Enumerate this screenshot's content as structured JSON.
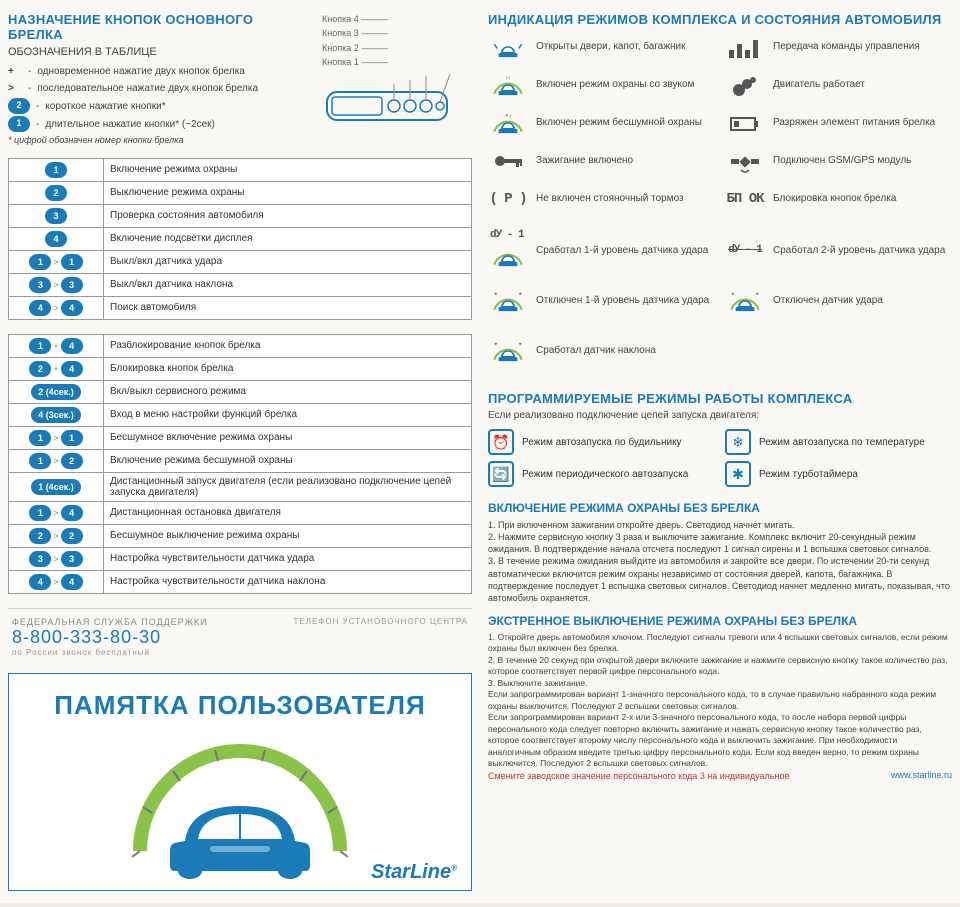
{
  "left": {
    "title": "НАЗНАЧЕНИЕ КНОПОК ОСНОВНОГО БРЕЛКА",
    "subtitle": "ОБОЗНАЧЕНИЯ В ТАБЛИЦЕ",
    "legend": [
      {
        "sym": "+",
        "text": "одновременное нажатие двух кнопок брелка"
      },
      {
        "sym": ">",
        "text": "последовательное нажатие двух кнопок брелка"
      },
      {
        "sym": "2",
        "pill": true,
        "text": "короткое нажатие кнопки*"
      },
      {
        "sym": "1",
        "pill": true,
        "text": "длительное нажатие кнопки* (~2сек)"
      }
    ],
    "legend_note": "* цифрой обозначен номер кнопки брелка",
    "fob_labels": [
      "Кнопка 4",
      "Кнопка 3",
      "Кнопка 2",
      "Кнопка 1"
    ],
    "table1": [
      {
        "buttons": [
          {
            "n": "1"
          }
        ],
        "desc": "Включение режима охраны"
      },
      {
        "buttons": [
          {
            "n": "2"
          }
        ],
        "desc": "Выключение режима охраны"
      },
      {
        "buttons": [
          {
            "n": "3"
          }
        ],
        "desc": "Проверка состояния автомобиля"
      },
      {
        "buttons": [
          {
            "n": "4"
          }
        ],
        "desc": "Включение подсветки дисплея"
      },
      {
        "buttons": [
          {
            "n": "1"
          },
          {
            "sep": ">"
          },
          {
            "n": "1"
          }
        ],
        "desc": "Выкл/вкл датчика удара"
      },
      {
        "buttons": [
          {
            "n": "3"
          },
          {
            "sep": ">"
          },
          {
            "n": "3"
          }
        ],
        "desc": "Выкл/вкл датчика наклона"
      },
      {
        "buttons": [
          {
            "n": "4"
          },
          {
            "sep": ">"
          },
          {
            "n": "4"
          }
        ],
        "desc": "Поиск автомобиля"
      }
    ],
    "table2": [
      {
        "buttons": [
          {
            "n": "1"
          },
          {
            "sep": "+"
          },
          {
            "n": "4"
          }
        ],
        "desc": "Разблокирование кнопок брелка"
      },
      {
        "buttons": [
          {
            "n": "2"
          },
          {
            "sep": "+"
          },
          {
            "n": "4"
          }
        ],
        "desc": "Блокировка кнопок брелка"
      },
      {
        "buttons": [
          {
            "n": "2 (4сек.)",
            "wide": true
          }
        ],
        "desc": "Вкл/выкл сервисного режима"
      },
      {
        "buttons": [
          {
            "n": "4 (3сек.)",
            "wide": true
          }
        ],
        "desc": "Вход в меню настройки функций брелка"
      },
      {
        "buttons": [
          {
            "n": "1"
          },
          {
            "sep": ">"
          },
          {
            "n": "1"
          }
        ],
        "desc": "Бесшумное включение режима охраны"
      },
      {
        "buttons": [
          {
            "n": "1"
          },
          {
            "sep": ">"
          },
          {
            "n": "2"
          }
        ],
        "desc": "Включение режима бесшумной охраны"
      },
      {
        "buttons": [
          {
            "n": "1 (4сек.)",
            "wide": true
          }
        ],
        "desc": "Дистанционный запуск двигателя (если реализовано подключение цепей запуска двигателя)"
      },
      {
        "buttons": [
          {
            "n": "1"
          },
          {
            "sep": ">"
          },
          {
            "n": "4"
          }
        ],
        "desc": "Дистанционная остановка двигателя"
      },
      {
        "buttons": [
          {
            "n": "2"
          },
          {
            "sep": ">"
          },
          {
            "n": "2"
          }
        ],
        "desc": "Бесшумное выключение режима охраны"
      },
      {
        "buttons": [
          {
            "n": "3"
          },
          {
            "sep": ">"
          },
          {
            "n": "3"
          }
        ],
        "desc": "Настройка чувствительности датчика удара"
      },
      {
        "buttons": [
          {
            "n": "4"
          },
          {
            "sep": ">"
          },
          {
            "n": "4"
          }
        ],
        "desc": "Настройка чувствительности датчика наклона"
      }
    ],
    "support_label": "ФЕДЕРАЛЬНАЯ СЛУЖБА ПОДДЕРЖКИ",
    "support_phone": "8-800-333-80-30",
    "support_note": "по России звонок бесплатный",
    "support_right": "ТЕЛЕФОН УСТАНОВОЧНОГО ЦЕНТРА",
    "memo_title": "ПАМЯТКА ПОЛЬЗОВАТЕЛЯ",
    "memo_brand": "StarLine"
  },
  "right": {
    "title1": "ИНДИКАЦИЯ РЕЖИМОВ КОМПЛЕКСА И СОСТОЯНИЯ АВТОМОБИЛЯ",
    "status": [
      {
        "type": "car-open",
        "text": "Открыты двери, капот, багажник"
      },
      {
        "type": "bars",
        "text": "Передача команды управления"
      },
      {
        "type": "car-sound",
        "text": "Включен режим охраны со звуком"
      },
      {
        "type": "smoke",
        "text": "Двигатель работает"
      },
      {
        "type": "car-mute",
        "text": "Включен режим бесшумной охраны"
      },
      {
        "type": "battery",
        "text": "Разряжен элемент питания брелка"
      },
      {
        "type": "key",
        "text": "Зажигание включено"
      },
      {
        "type": "sat",
        "text": "Подключен GSM/GPS модуль"
      },
      {
        "type": "parking",
        "label": "( P )",
        "text": "Не включен стояночный тормоз"
      },
      {
        "type": "digital",
        "label": "БП ОК",
        "text": "Блокировка кнопок брелка"
      }
    ],
    "sensors": [
      {
        "label": "dУ - 1",
        "text": "Сработал 1-й уровень датчика удара",
        "car": true
      },
      {
        "label": "dУ - 1",
        "text": "Сработал 2-й уровень датчика удара",
        "car": false,
        "strike": true
      },
      {
        "label": "",
        "text": "Отключен 1-й уровень датчика удара",
        "car": true
      },
      {
        "label": "",
        "text": "Отключен датчик удара",
        "car": true
      },
      {
        "label": "",
        "text": "Сработал датчик наклона",
        "car": true
      }
    ],
    "title2": "ПРОГРАММИРУЕМЫЕ РЕЖИМЫ РАБОТЫ КОМПЛЕКСА",
    "prog_intro": "Если реализовано подключение цепей запуска двигателя:",
    "prog_modes": [
      {
        "icon": "⏰",
        "text": "Режим автозапуска по будильнику"
      },
      {
        "icon": "❄",
        "text": "Режим автозапуска по температуре"
      },
      {
        "icon": "🔄",
        "text": "Режим периодического автозапуска"
      },
      {
        "icon": "✱",
        "text": "Режим турботаймера"
      }
    ],
    "instr1_title": "ВКЛЮЧЕНИЕ РЕЖИМА ОХРАНЫ БЕЗ БРЕЛКА",
    "instr1_body": "1. При включенном зажигании откройте дверь. Светодиод начнет мигать.\n2. Нажмите сервисную кнопку 3 раза и выключите зажигание. Комплекс включит 20-секундный режим ожидания. В подтверждение начала отсчета последуют 1 сигнал сирены и 1 вспышка световых сигналов.\n3. В течение режима ожидания выйдите из автомобиля и закройте все двери. По истечении 20-ти секунд автоматически включится режим охраны независимо от состояния дверей, капота, багажника. В подтверждение последует 1 вспышка световых сигналов. Светодиод начнет медленно мигать, показывая, что автомобиль охраняется.",
    "instr2_title": "ЭКСТРЕННОЕ ВЫКЛЮЧЕНИЕ РЕЖИМА ОХРАНЫ БЕЗ БРЕЛКА",
    "instr2_body": "1. Откройте дверь автомобиля ключом. Последуют сигналы тревоги или 4 вспышки световых сигналов, если режим охраны был включен без брелка.\n2. В течение 20 секунд при открытой двери включите зажигание и нажмите сервисную кнопку такое количество раз, которое соответствует первой цифре персонального кода.\n3. Выключите зажигание.\nЕсли запрограммирован вариант 1-значного персонального кода, то в случае правильно набранного кода режим охраны выключится. Последуют 2 вспышки световых сигналов.\nЕсли запрограммирован вариант 2-х или 3-значного персонального кода, то после набора первой цифры персонального кода следует повторно включить зажигание и нажать сервисную кнопку такое количество раз, которое соответствует второму числу персонального кода и выключить зажигание. При необходимости аналогичным образом введите третью цифру персонального кода. Если код введен верно, то режим охраны выключится. Последуют 2 вспышки световых сигналов.",
    "red_note": "Смените заводское значение персонального кода 3 на индивидуальное",
    "url": "www.starline.ru"
  },
  "colors": {
    "blue": "#1a7bb8",
    "green": "#8bc34a",
    "gray": "#666"
  }
}
